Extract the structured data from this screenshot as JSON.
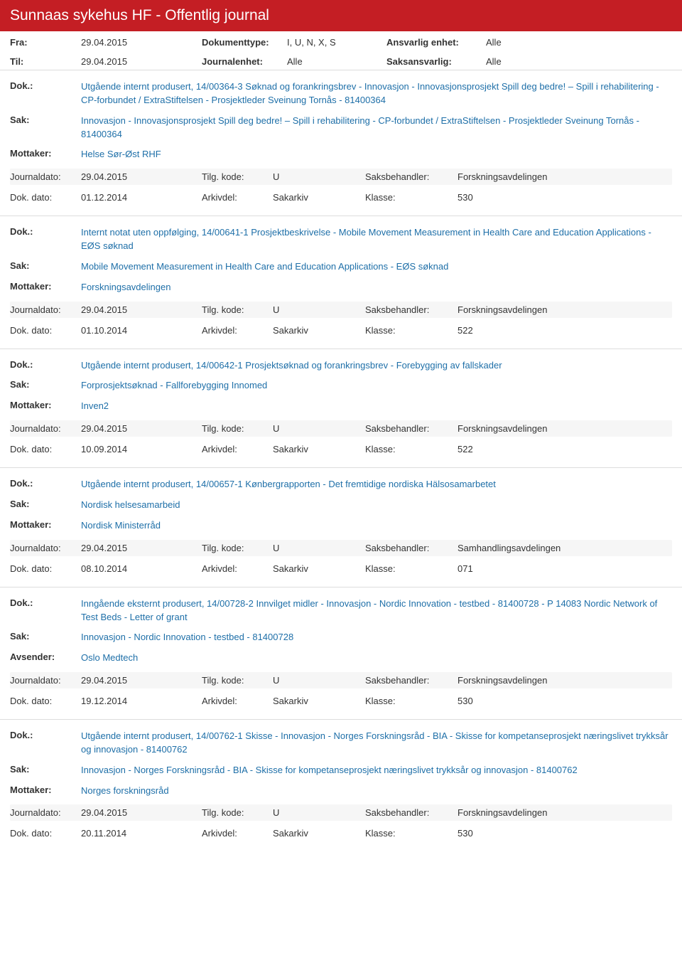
{
  "header": {
    "title": "Sunnaas sykehus HF - Offentlig journal"
  },
  "filters": {
    "fra_label": "Fra:",
    "fra_value": "29.04.2015",
    "til_label": "Til:",
    "til_value": "29.04.2015",
    "doktype_label": "Dokumenttype:",
    "doktype_value": "I, U, N, X, S",
    "journalenhet_label": "Journalenhet:",
    "journalenhet_value": "Alle",
    "ansvarlig_label": "Ansvarlig enhet:",
    "ansvarlig_value": "Alle",
    "saksansvarlig_label": "Saksansvarlig:",
    "saksansvarlig_value": "Alle"
  },
  "labels": {
    "dok": "Dok.:",
    "sak": "Sak:",
    "mottaker": "Mottaker:",
    "avsender": "Avsender:",
    "journaldato": "Journaldato:",
    "tilgkode": "Tilg. kode:",
    "saksbehandler": "Saksbehandler:",
    "dokdato": "Dok. dato:",
    "arkivdel": "Arkivdel:",
    "klasse": "Klasse:"
  },
  "entries": [
    {
      "dok": "Utgående internt produsert, 14/00364-3 Søknad og forankringsbrev - Innovasjon - Innovasjonsprosjekt Spill deg bedre! – Spill i rehabilitering - CP-forbundet / ExtraStiftelsen - Prosjektleder Sveinung Tornås - 81400364",
      "sak": "Innovasjon - Innovasjonsprosjekt Spill deg bedre! – Spill i rehabilitering - CP-forbundet / ExtraStiftelsen - Prosjektleder Sveinung Tornås - 81400364",
      "party_label": "Mottaker:",
      "party": "Helse Sør-Øst RHF",
      "journaldato": "29.04.2015",
      "tilgkode": "U",
      "saksbehandler": "Forskningsavdelingen",
      "dokdato": "01.12.2014",
      "arkivdel": "Sakarkiv",
      "klasse": "530"
    },
    {
      "dok": "Internt notat uten oppfølging, 14/00641-1 Prosjektbeskrivelse - Mobile Movement Measurement in Health Care and Education Applications - EØS søknad",
      "sak": "Mobile Movement Measurement in Health Care and Education Applications - EØS søknad",
      "party_label": "Mottaker:",
      "party": "Forskningsavdelingen",
      "journaldato": "29.04.2015",
      "tilgkode": "U",
      "saksbehandler": "Forskningsavdelingen",
      "dokdato": "01.10.2014",
      "arkivdel": "Sakarkiv",
      "klasse": "522"
    },
    {
      "dok": "Utgående internt produsert, 14/00642-1 Prosjektsøknad og forankringsbrev - Forebygging av fallskader",
      "sak": "Forprosjektsøknad - Fallforebygging Innomed",
      "party_label": "Mottaker:",
      "party": "Inven2",
      "journaldato": "29.04.2015",
      "tilgkode": "U",
      "saksbehandler": "Forskningsavdelingen",
      "dokdato": "10.09.2014",
      "arkivdel": "Sakarkiv",
      "klasse": "522"
    },
    {
      "dok": "Utgående internt produsert, 14/00657-1 Kønbergrapporten - Det fremtidige nordiska Hälsosamarbetet",
      "sak": "Nordisk helsesamarbeid",
      "party_label": "Mottaker:",
      "party": "Nordisk Ministerråd",
      "journaldato": "29.04.2015",
      "tilgkode": "U",
      "saksbehandler": "Samhandlingsavdelingen",
      "dokdato": "08.10.2014",
      "arkivdel": "Sakarkiv",
      "klasse": "071"
    },
    {
      "dok": "Inngående eksternt produsert, 14/00728-2 Innvilget midler - Innovasjon - Nordic Innovation - testbed - 81400728 - P 14083 Nordic Network of Test Beds - Letter of grant",
      "sak": "Innovasjon - Nordic Innovation - testbed - 81400728",
      "party_label": "Avsender:",
      "party": "Oslo Medtech",
      "journaldato": "29.04.2015",
      "tilgkode": "U",
      "saksbehandler": "Forskningsavdelingen",
      "dokdato": "19.12.2014",
      "arkivdel": "Sakarkiv",
      "klasse": "530"
    },
    {
      "dok": "Utgående internt produsert, 14/00762-1 Skisse - Innovasjon - Norges Forskningsråd - BIA - Skisse for kompetanseprosjekt næringslivet trykksår og innovasjon - 81400762",
      "sak": "Innovasjon - Norges Forskningsråd - BIA - Skisse for kompetanseprosjekt næringslivet trykksår og innovasjon - 81400762",
      "party_label": "Mottaker:",
      "party": "Norges forskningsråd",
      "journaldato": "29.04.2015",
      "tilgkode": "U",
      "saksbehandler": "Forskningsavdelingen",
      "dokdato": "20.11.2014",
      "arkivdel": "Sakarkiv",
      "klasse": "530"
    }
  ]
}
